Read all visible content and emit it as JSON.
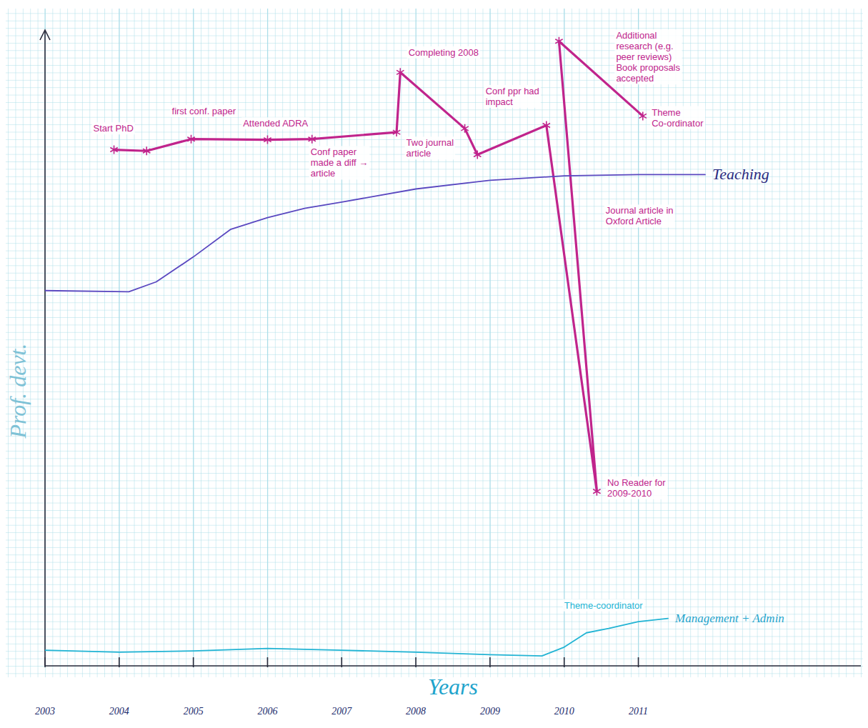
{
  "chart_data": {
    "type": "line",
    "x_label": "Years",
    "y_label": "Prof. devt.",
    "xlim": [
      2003,
      2014
    ],
    "xticks": [
      2003,
      2004,
      2005,
      2006,
      2007,
      2008,
      2009,
      2010,
      2011
    ],
    "ylim": [
      0,
      102
    ],
    "yticks": [],
    "tick_labels": "x",
    "grid": true,
    "series": [
      {
        "color": "#c0248c",
        "marker": "star",
        "line_style": "solid",
        "x": [
          2003.93,
          2004.37,
          2004.97,
          2006.0,
          2006.6,
          2007.74,
          2007.79,
          2008.66,
          2008.83,
          2009.76,
          2010.44,
          2009.93,
          2011.06
        ],
        "values": [
          82.8,
          82.6,
          84.5,
          84.4,
          84.5,
          85.6,
          95.2,
          86.2,
          82.0,
          86.7,
          28.0,
          100.2,
          88.2
        ]
      },
      {
        "name": "Teaching",
        "color": "#5a48c0",
        "marker": "none",
        "line_style": "solid",
        "x": [
          2003.0,
          2004.13,
          2004.5,
          2005.0,
          2005.5,
          2006.0,
          2006.5,
          2007.0,
          2008.0,
          2009.0,
          2010.0,
          2011.0,
          2011.9
        ],
        "values": [
          60.2,
          60.0,
          61.6,
          65.6,
          70.0,
          71.9,
          73.4,
          74.4,
          76.5,
          77.9,
          78.6,
          78.8,
          78.8
        ]
      },
      {
        "name": "Management + Admin",
        "color": "#22b4d4",
        "marker": "none",
        "line_style": "solid",
        "x": [
          2003.0,
          2004.0,
          2005.0,
          2006.0,
          2007.0,
          2008.0,
          2009.0,
          2009.7,
          2010.0,
          2010.3,
          2010.6,
          2011.0,
          2011.4
        ],
        "values": [
          2.5,
          2.2,
          2.4,
          2.8,
          2.5,
          2.2,
          1.8,
          1.6,
          3.0,
          5.3,
          6.0,
          7.1,
          7.6
        ]
      }
    ],
    "annotations": [
      {
        "text": "Start PhD",
        "x": 2003.65,
        "y": 85.7,
        "color": "#c0248c"
      },
      {
        "text": "first conf. paper",
        "x": 2004.71,
        "y": 88.5,
        "color": "#c0248c"
      },
      {
        "text": "Attended ADRA",
        "x": 2005.67,
        "y": 86.5,
        "color": "#c0248c"
      },
      {
        "text": "Conf paper made a diff → article",
        "x": 2006.58,
        "y": 81.9,
        "color": "#c0248c"
      },
      {
        "text": "Completing 2008",
        "x": 2007.9,
        "y": 97.9,
        "color": "#c0248c"
      },
      {
        "text": "Conf ppr had impact",
        "x": 2008.94,
        "y": 91.7,
        "color": "#c0248c"
      },
      {
        "text": "Two journal article",
        "x": 2007.87,
        "y": 83.4,
        "color": "#c0248c"
      },
      {
        "text": "Journal article in Oxford Article",
        "x": 2010.56,
        "y": 72.5,
        "color": "#c0248c"
      },
      {
        "text": "No Reader for 2009-2010",
        "x": 2010.58,
        "y": 28.9,
        "color": "#c0248c"
      },
      {
        "text": "Additional research (e.g. peer reviews) Book proposals accepted",
        "x": 2010.7,
        "y": 100.6,
        "color": "#c0248c"
      },
      {
        "text": "Theme Co-ordinator",
        "x": 2011.18,
        "y": 88.3,
        "color": "#c0248c"
      },
      {
        "text": "Theme-coordinator",
        "x": 2010.0,
        "y": 9.2,
        "color": "#22b4d4"
      }
    ]
  }
}
